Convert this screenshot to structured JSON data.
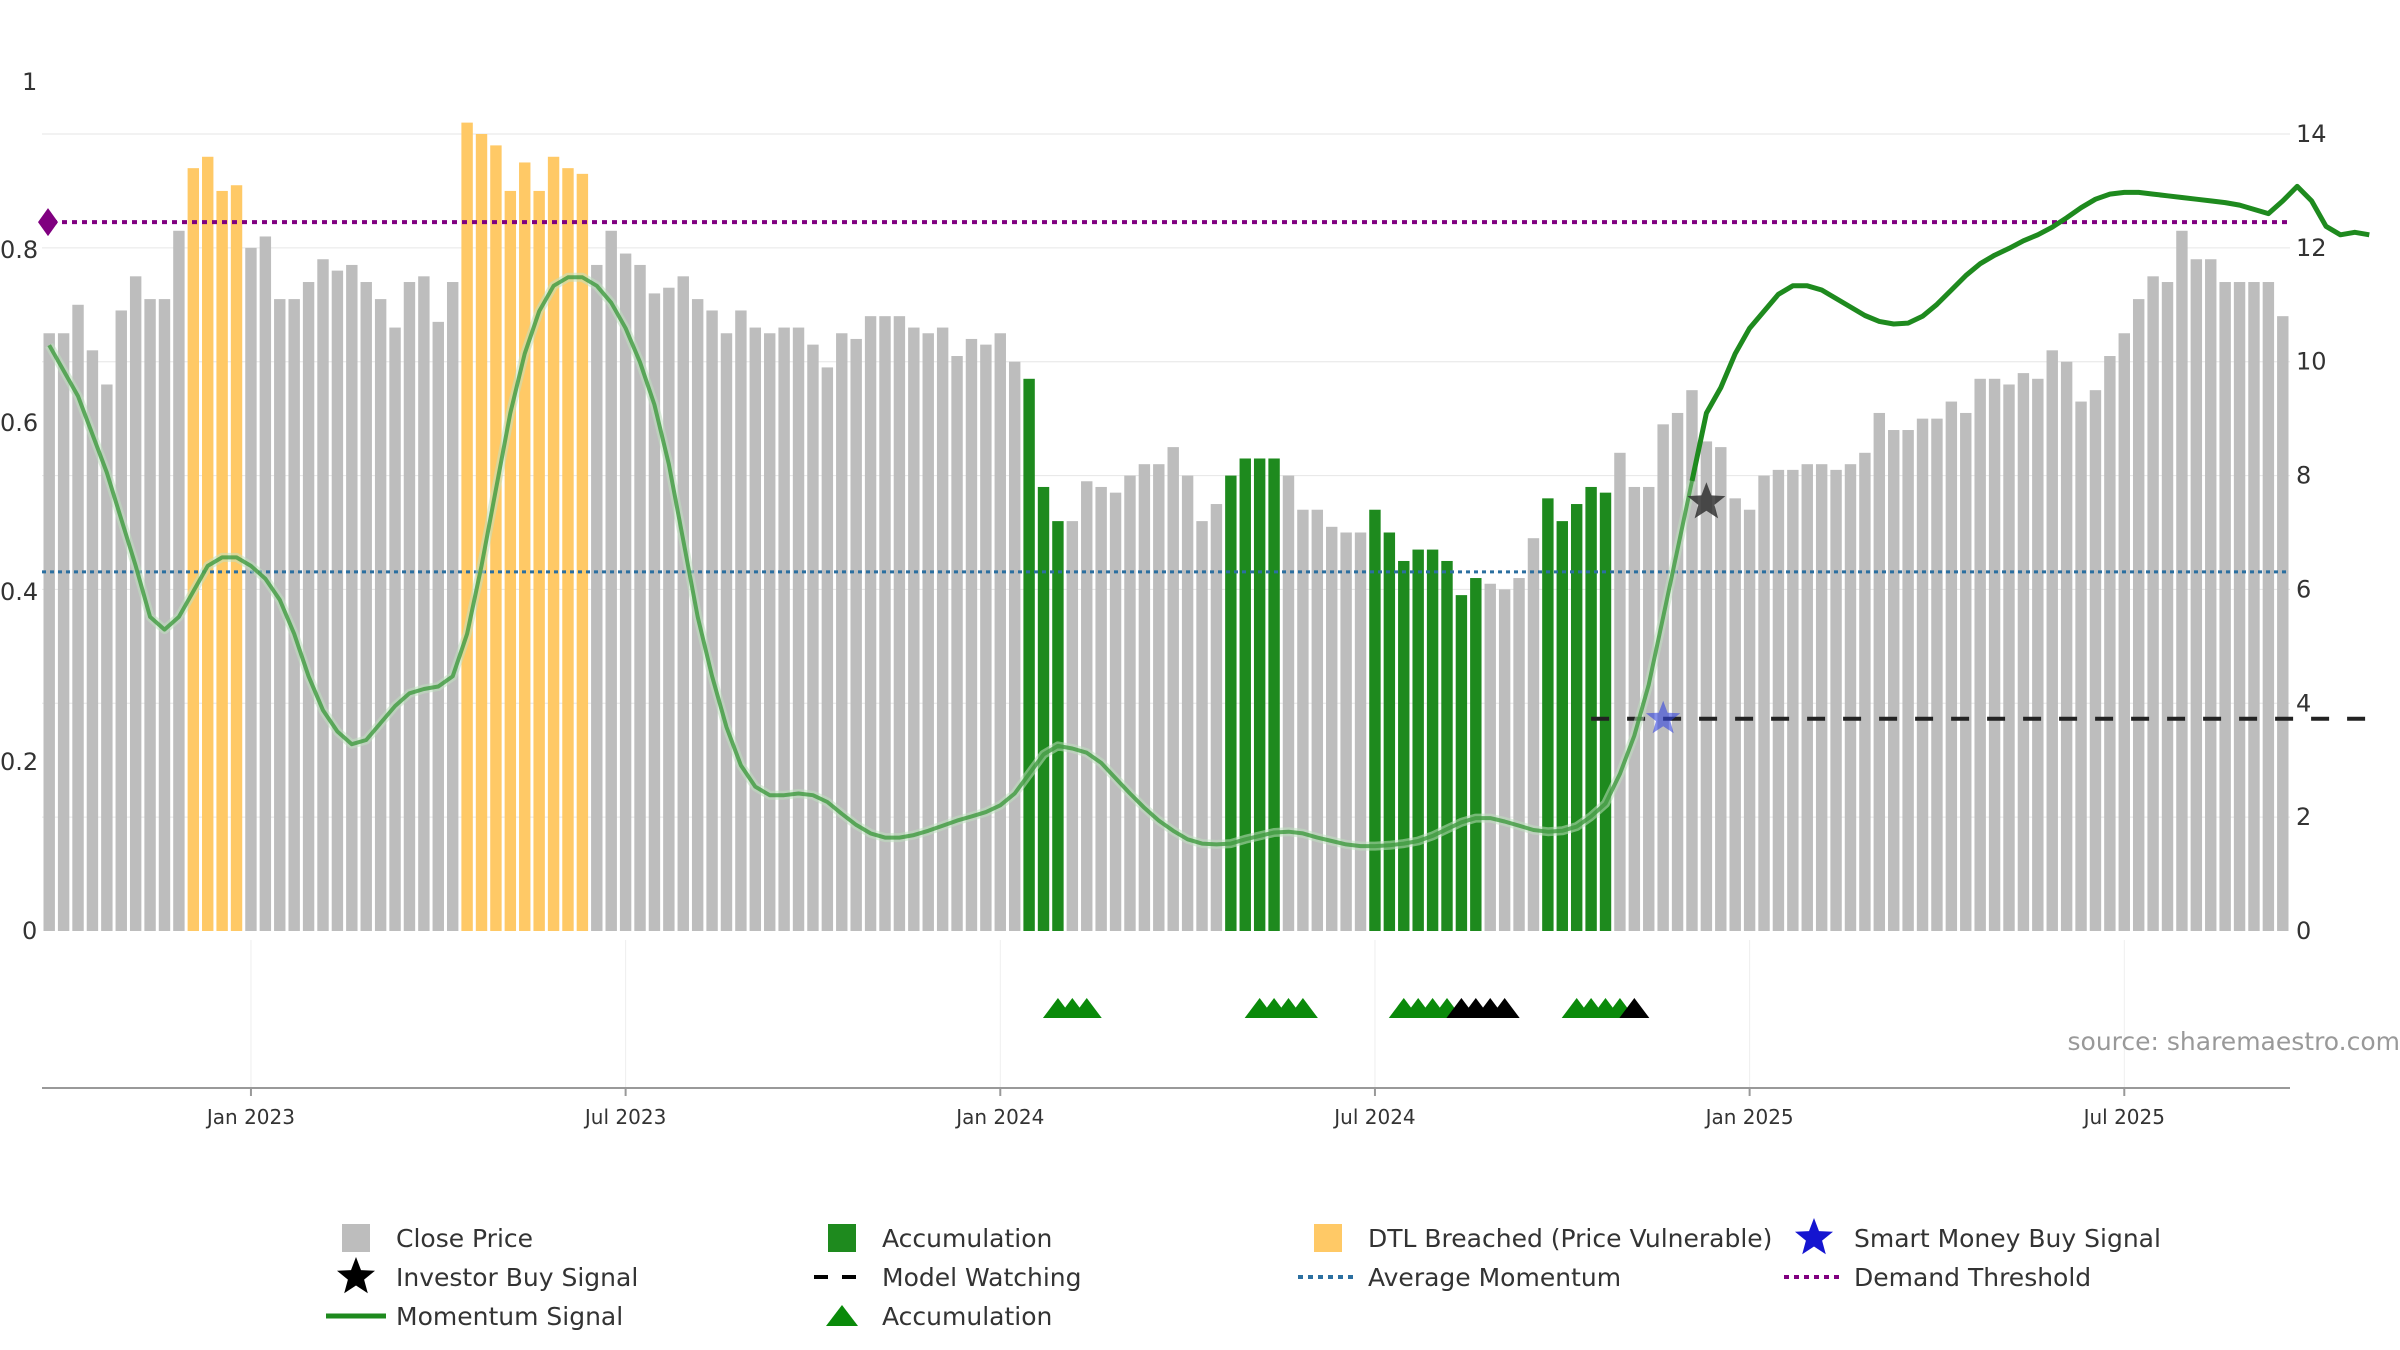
{
  "chart_data": {
    "type": "bar",
    "source_label": "source: sharemaestro.com",
    "colors": {
      "close": "#bdbdbd",
      "accumulation": "#1e8a1e",
      "dtl": "#ffc966",
      "momentum": "#1e8a1e",
      "demand_threshold": "#800080",
      "average_momentum": "#2b6fa0",
      "model_watching": "#222222",
      "investor_star": "#333333",
      "smart_star": "#3344dd",
      "triangle_green": "#0a8a0a",
      "triangle_black": "#000000"
    },
    "left_axis": {
      "ticks": [
        "0",
        "0.2",
        "0.4",
        "0.6",
        "0.8",
        "1"
      ],
      "range": [
        0,
        1
      ]
    },
    "right_axis": {
      "ticks": [
        "0",
        "2",
        "4",
        "6",
        "8",
        "10",
        "12",
        "14"
      ],
      "range": [
        0,
        14
      ]
    },
    "x_ticks": [
      "Jan 2023",
      "Jul 2023",
      "Jan 2024",
      "Jul 2024",
      "Jan 2025",
      "Jul 2025"
    ],
    "x_tick_bar_index": [
      14,
      40,
      66,
      92,
      118,
      144
    ],
    "bars": [
      {
        "v": 10.5,
        "c": "close"
      },
      {
        "v": 10.5,
        "c": "close"
      },
      {
        "v": 11.0,
        "c": "close"
      },
      {
        "v": 10.2,
        "c": "close"
      },
      {
        "v": 9.6,
        "c": "close"
      },
      {
        "v": 10.9,
        "c": "close"
      },
      {
        "v": 11.5,
        "c": "close"
      },
      {
        "v": 11.1,
        "c": "close"
      },
      {
        "v": 11.1,
        "c": "close"
      },
      {
        "v": 12.3,
        "c": "close"
      },
      {
        "v": 13.4,
        "c": "dtl"
      },
      {
        "v": 13.6,
        "c": "dtl"
      },
      {
        "v": 13.0,
        "c": "dtl"
      },
      {
        "v": 13.1,
        "c": "dtl"
      },
      {
        "v": 12.0,
        "c": "close"
      },
      {
        "v": 12.2,
        "c": "close"
      },
      {
        "v": 11.1,
        "c": "close"
      },
      {
        "v": 11.1,
        "c": "close"
      },
      {
        "v": 11.4,
        "c": "close"
      },
      {
        "v": 11.8,
        "c": "close"
      },
      {
        "v": 11.6,
        "c": "close"
      },
      {
        "v": 11.7,
        "c": "close"
      },
      {
        "v": 11.4,
        "c": "close"
      },
      {
        "v": 11.1,
        "c": "close"
      },
      {
        "v": 10.6,
        "c": "close"
      },
      {
        "v": 11.4,
        "c": "close"
      },
      {
        "v": 11.5,
        "c": "close"
      },
      {
        "v": 10.7,
        "c": "close"
      },
      {
        "v": 11.4,
        "c": "close"
      },
      {
        "v": 14.2,
        "c": "dtl"
      },
      {
        "v": 14.0,
        "c": "dtl"
      },
      {
        "v": 13.8,
        "c": "dtl"
      },
      {
        "v": 13.0,
        "c": "dtl"
      },
      {
        "v": 13.5,
        "c": "dtl"
      },
      {
        "v": 13.0,
        "c": "dtl"
      },
      {
        "v": 13.6,
        "c": "dtl"
      },
      {
        "v": 13.4,
        "c": "dtl"
      },
      {
        "v": 13.3,
        "c": "dtl"
      },
      {
        "v": 11.7,
        "c": "close"
      },
      {
        "v": 12.3,
        "c": "close"
      },
      {
        "v": 11.9,
        "c": "close"
      },
      {
        "v": 11.7,
        "c": "close"
      },
      {
        "v": 11.2,
        "c": "close"
      },
      {
        "v": 11.3,
        "c": "close"
      },
      {
        "v": 11.5,
        "c": "close"
      },
      {
        "v": 11.1,
        "c": "close"
      },
      {
        "v": 10.9,
        "c": "close"
      },
      {
        "v": 10.5,
        "c": "close"
      },
      {
        "v": 10.9,
        "c": "close"
      },
      {
        "v": 10.6,
        "c": "close"
      },
      {
        "v": 10.5,
        "c": "close"
      },
      {
        "v": 10.6,
        "c": "close"
      },
      {
        "v": 10.6,
        "c": "close"
      },
      {
        "v": 10.3,
        "c": "close"
      },
      {
        "v": 9.9,
        "c": "close"
      },
      {
        "v": 10.5,
        "c": "close"
      },
      {
        "v": 10.4,
        "c": "close"
      },
      {
        "v": 10.8,
        "c": "close"
      },
      {
        "v": 10.8,
        "c": "close"
      },
      {
        "v": 10.8,
        "c": "close"
      },
      {
        "v": 10.6,
        "c": "close"
      },
      {
        "v": 10.5,
        "c": "close"
      },
      {
        "v": 10.6,
        "c": "close"
      },
      {
        "v": 10.1,
        "c": "close"
      },
      {
        "v": 10.4,
        "c": "close"
      },
      {
        "v": 10.3,
        "c": "close"
      },
      {
        "v": 10.5,
        "c": "close"
      },
      {
        "v": 10.0,
        "c": "close"
      },
      {
        "v": 9.7,
        "c": "accumulation"
      },
      {
        "v": 7.8,
        "c": "accumulation"
      },
      {
        "v": 7.2,
        "c": "accumulation"
      },
      {
        "v": 7.2,
        "c": "close"
      },
      {
        "v": 7.9,
        "c": "close"
      },
      {
        "v": 7.8,
        "c": "close"
      },
      {
        "v": 7.7,
        "c": "close"
      },
      {
        "v": 8.0,
        "c": "close"
      },
      {
        "v": 8.2,
        "c": "close"
      },
      {
        "v": 8.2,
        "c": "close"
      },
      {
        "v": 8.5,
        "c": "close"
      },
      {
        "v": 8.0,
        "c": "close"
      },
      {
        "v": 7.2,
        "c": "close"
      },
      {
        "v": 7.5,
        "c": "close"
      },
      {
        "v": 8.0,
        "c": "accumulation"
      },
      {
        "v": 8.3,
        "c": "accumulation"
      },
      {
        "v": 8.3,
        "c": "accumulation"
      },
      {
        "v": 8.3,
        "c": "accumulation"
      },
      {
        "v": 8.0,
        "c": "close"
      },
      {
        "v": 7.4,
        "c": "close"
      },
      {
        "v": 7.4,
        "c": "close"
      },
      {
        "v": 7.1,
        "c": "close"
      },
      {
        "v": 7.0,
        "c": "close"
      },
      {
        "v": 7.0,
        "c": "close"
      },
      {
        "v": 7.4,
        "c": "accumulation"
      },
      {
        "v": 7.0,
        "c": "accumulation"
      },
      {
        "v": 6.5,
        "c": "accumulation"
      },
      {
        "v": 6.7,
        "c": "accumulation"
      },
      {
        "v": 6.7,
        "c": "accumulation"
      },
      {
        "v": 6.5,
        "c": "accumulation"
      },
      {
        "v": 5.9,
        "c": "accumulation"
      },
      {
        "v": 6.2,
        "c": "accumulation"
      },
      {
        "v": 6.1,
        "c": "close"
      },
      {
        "v": 6.0,
        "c": "close"
      },
      {
        "v": 6.2,
        "c": "close"
      },
      {
        "v": 6.9,
        "c": "close"
      },
      {
        "v": 7.6,
        "c": "accumulation"
      },
      {
        "v": 7.2,
        "c": "accumulation"
      },
      {
        "v": 7.5,
        "c": "accumulation"
      },
      {
        "v": 7.8,
        "c": "accumulation"
      },
      {
        "v": 7.7,
        "c": "accumulation"
      },
      {
        "v": 8.4,
        "c": "close"
      },
      {
        "v": 7.8,
        "c": "close"
      },
      {
        "v": 7.8,
        "c": "close"
      },
      {
        "v": 8.9,
        "c": "close"
      },
      {
        "v": 9.1,
        "c": "close"
      },
      {
        "v": 9.5,
        "c": "close"
      },
      {
        "v": 8.6,
        "c": "close"
      },
      {
        "v": 8.5,
        "c": "close"
      },
      {
        "v": 7.6,
        "c": "close"
      },
      {
        "v": 7.4,
        "c": "close"
      },
      {
        "v": 8.0,
        "c": "close"
      },
      {
        "v": 8.1,
        "c": "close"
      },
      {
        "v": 8.1,
        "c": "close"
      },
      {
        "v": 8.2,
        "c": "close"
      },
      {
        "v": 8.2,
        "c": "close"
      },
      {
        "v": 8.1,
        "c": "close"
      },
      {
        "v": 8.2,
        "c": "close"
      },
      {
        "v": 8.4,
        "c": "close"
      },
      {
        "v": 9.1,
        "c": "close"
      },
      {
        "v": 8.8,
        "c": "close"
      },
      {
        "v": 8.8,
        "c": "close"
      },
      {
        "v": 9.0,
        "c": "close"
      },
      {
        "v": 9.0,
        "c": "close"
      },
      {
        "v": 9.3,
        "c": "close"
      },
      {
        "v": 9.1,
        "c": "close"
      },
      {
        "v": 9.7,
        "c": "close"
      },
      {
        "v": 9.7,
        "c": "close"
      },
      {
        "v": 9.6,
        "c": "close"
      },
      {
        "v": 9.8,
        "c": "close"
      },
      {
        "v": 9.7,
        "c": "close"
      },
      {
        "v": 10.2,
        "c": "close"
      },
      {
        "v": 10.0,
        "c": "close"
      },
      {
        "v": 9.3,
        "c": "close"
      },
      {
        "v": 9.5,
        "c": "close"
      },
      {
        "v": 10.1,
        "c": "close"
      },
      {
        "v": 10.5,
        "c": "close"
      },
      {
        "v": 11.1,
        "c": "close"
      },
      {
        "v": 11.5,
        "c": "close"
      },
      {
        "v": 11.4,
        "c": "close"
      },
      {
        "v": 12.3,
        "c": "close"
      },
      {
        "v": 11.8,
        "c": "close"
      },
      {
        "v": 11.8,
        "c": "close"
      },
      {
        "v": 11.4,
        "c": "close"
      },
      {
        "v": 11.4,
        "c": "close"
      },
      {
        "v": 11.4,
        "c": "close"
      },
      {
        "v": 11.4,
        "c": "close"
      },
      {
        "v": 10.8,
        "c": "close"
      }
    ],
    "momentum": [
      [
        0,
        0.69
      ],
      [
        2,
        0.63
      ],
      [
        4,
        0.54
      ],
      [
        6,
        0.43
      ],
      [
        7,
        0.37
      ],
      [
        8,
        0.355
      ],
      [
        9,
        0.37
      ],
      [
        10,
        0.4
      ],
      [
        11,
        0.43
      ],
      [
        12,
        0.44
      ],
      [
        13,
        0.44
      ],
      [
        14,
        0.43
      ],
      [
        15,
        0.415
      ],
      [
        16,
        0.39
      ],
      [
        17,
        0.35
      ],
      [
        18,
        0.3
      ],
      [
        19,
        0.26
      ],
      [
        20,
        0.235
      ],
      [
        21,
        0.22
      ],
      [
        22,
        0.225
      ],
      [
        23,
        0.245
      ],
      [
        24,
        0.265
      ],
      [
        25,
        0.28
      ],
      [
        26,
        0.285
      ],
      [
        27,
        0.288
      ],
      [
        28,
        0.3
      ],
      [
        29,
        0.35
      ],
      [
        30,
        0.43
      ],
      [
        31,
        0.52
      ],
      [
        32,
        0.61
      ],
      [
        33,
        0.68
      ],
      [
        34,
        0.73
      ],
      [
        35,
        0.76
      ],
      [
        36,
        0.77
      ],
      [
        37,
        0.77
      ],
      [
        38,
        0.76
      ],
      [
        39,
        0.74
      ],
      [
        40,
        0.71
      ],
      [
        41,
        0.67
      ],
      [
        42,
        0.62
      ],
      [
        43,
        0.55
      ],
      [
        44,
        0.46
      ],
      [
        45,
        0.37
      ],
      [
        46,
        0.3
      ],
      [
        47,
        0.24
      ],
      [
        48,
        0.195
      ],
      [
        49,
        0.17
      ],
      [
        50,
        0.16
      ],
      [
        51,
        0.16
      ],
      [
        52,
        0.162
      ],
      [
        53,
        0.16
      ],
      [
        54,
        0.152
      ],
      [
        55,
        0.138
      ],
      [
        56,
        0.125
      ],
      [
        57,
        0.115
      ],
      [
        58,
        0.11
      ],
      [
        59,
        0.11
      ],
      [
        60,
        0.113
      ],
      [
        61,
        0.118
      ],
      [
        62,
        0.124
      ],
      [
        63,
        0.13
      ],
      [
        64,
        0.135
      ],
      [
        65,
        0.14
      ],
      [
        66,
        0.148
      ],
      [
        67,
        0.162
      ],
      [
        68,
        0.185
      ],
      [
        69,
        0.208
      ],
      [
        70,
        0.218
      ],
      [
        71,
        0.215
      ],
      [
        72,
        0.21
      ],
      [
        73,
        0.198
      ],
      [
        74,
        0.18
      ],
      [
        75,
        0.162
      ],
      [
        76,
        0.145
      ],
      [
        77,
        0.13
      ],
      [
        78,
        0.118
      ],
      [
        79,
        0.108
      ],
      [
        80,
        0.103
      ],
      [
        81,
        0.102
      ],
      [
        82,
        0.103
      ],
      [
        83,
        0.108
      ],
      [
        84,
        0.112
      ],
      [
        85,
        0.116
      ],
      [
        86,
        0.117
      ],
      [
        87,
        0.115
      ],
      [
        88,
        0.11
      ],
      [
        89,
        0.106
      ],
      [
        90,
        0.102
      ],
      [
        91,
        0.1
      ],
      [
        92,
        0.1
      ],
      [
        93,
        0.101
      ],
      [
        94,
        0.103
      ],
      [
        95,
        0.106
      ],
      [
        96,
        0.112
      ],
      [
        97,
        0.12
      ],
      [
        98,
        0.128
      ],
      [
        99,
        0.133
      ],
      [
        100,
        0.133
      ],
      [
        101,
        0.129
      ],
      [
        102,
        0.124
      ],
      [
        103,
        0.119
      ],
      [
        104,
        0.117
      ],
      [
        105,
        0.118
      ],
      [
        106,
        0.123
      ],
      [
        107,
        0.135
      ],
      [
        108,
        0.15
      ],
      [
        109,
        0.185
      ],
      [
        110,
        0.23
      ],
      [
        111,
        0.29
      ],
      [
        112,
        0.37
      ],
      [
        113,
        0.45
      ],
      [
        114,
        0.53
      ],
      [
        115,
        0.61
      ],
      [
        116,
        0.64
      ],
      [
        117,
        0.68
      ],
      [
        118,
        0.71
      ],
      [
        119,
        0.73
      ],
      [
        120,
        0.75
      ],
      [
        121,
        0.76
      ],
      [
        122,
        0.76
      ],
      [
        123,
        0.755
      ],
      [
        124,
        0.745
      ],
      [
        125,
        0.735
      ],
      [
        126,
        0.725
      ],
      [
        127,
        0.718
      ],
      [
        128,
        0.715
      ],
      [
        129,
        0.716
      ],
      [
        130,
        0.724
      ],
      [
        131,
        0.738
      ],
      [
        132,
        0.755
      ],
      [
        133,
        0.772
      ],
      [
        134,
        0.786
      ],
      [
        135,
        0.796
      ],
      [
        136,
        0.804
      ],
      [
        137,
        0.813
      ],
      [
        138,
        0.82
      ],
      [
        139,
        0.829
      ],
      [
        140,
        0.84
      ],
      [
        141,
        0.852
      ],
      [
        142,
        0.862
      ],
      [
        143,
        0.868
      ],
      [
        144,
        0.87
      ],
      [
        145,
        0.87
      ],
      [
        146,
        0.868
      ],
      [
        147,
        0.866
      ],
      [
        148,
        0.864
      ],
      [
        149,
        0.862
      ],
      [
        150,
        0.86
      ],
      [
        151,
        0.858
      ],
      [
        152,
        0.855
      ],
      [
        153,
        0.85
      ],
      [
        154,
        0.845
      ],
      [
        155,
        0.86
      ],
      [
        156,
        0.877
      ],
      [
        157,
        0.86
      ],
      [
        158,
        0.83
      ],
      [
        159,
        0.82
      ],
      [
        160,
        0.823
      ],
      [
        161,
        0.82
      ]
    ],
    "momentum_dim_until": 114,
    "demand_threshold": 0.835,
    "average_momentum": 0.423,
    "model_watching": {
      "value": 0.25,
      "from": 107,
      "to": 161
    },
    "investor_buy_signal": {
      "x": 115,
      "y": 0.505
    },
    "smart_money_buy_signal": {
      "x": 112,
      "y": 0.25
    },
    "triangles": [
      {
        "x": 70,
        "c": "triangle_green"
      },
      {
        "x": 71,
        "c": "triangle_green"
      },
      {
        "x": 72,
        "c": "triangle_green"
      },
      {
        "x": 84,
        "c": "triangle_green"
      },
      {
        "x": 85,
        "c": "triangle_green"
      },
      {
        "x": 86,
        "c": "triangle_green"
      },
      {
        "x": 87,
        "c": "triangle_green"
      },
      {
        "x": 94,
        "c": "triangle_green"
      },
      {
        "x": 95,
        "c": "triangle_green"
      },
      {
        "x": 96,
        "c": "triangle_green"
      },
      {
        "x": 97,
        "c": "triangle_green"
      },
      {
        "x": 98,
        "c": "triangle_black"
      },
      {
        "x": 99,
        "c": "triangle_black"
      },
      {
        "x": 100,
        "c": "triangle_black"
      },
      {
        "x": 101,
        "c": "triangle_black"
      },
      {
        "x": 106,
        "c": "triangle_green"
      },
      {
        "x": 107,
        "c": "triangle_green"
      },
      {
        "x": 108,
        "c": "triangle_green"
      },
      {
        "x": 109,
        "c": "triangle_green"
      },
      {
        "x": 110,
        "c": "triangle_black"
      }
    ],
    "legend": [
      {
        "label": "Close Price",
        "marker": "square",
        "color": "close"
      },
      {
        "label": "Accumulation",
        "marker": "square",
        "color": "accumulation"
      },
      {
        "label": "DTL Breached (Price Vulnerable)",
        "marker": "square",
        "color": "dtl"
      },
      {
        "label": "Smart Money Buy Signal",
        "marker": "star",
        "color": "#1515d0"
      },
      {
        "label": "Investor Buy Signal",
        "marker": "star",
        "color": "#000000"
      },
      {
        "label": "Model Watching",
        "marker": "dash",
        "color": "#000000"
      },
      {
        "label": "Average Momentum",
        "marker": "dot",
        "color": "average_momentum"
      },
      {
        "label": "Demand Threshold",
        "marker": "dot",
        "color": "demand_threshold"
      },
      {
        "label": "Momentum Signal",
        "marker": "line",
        "color": "momentum"
      },
      {
        "label": "Accumulation",
        "marker": "triangle",
        "color": "triangle_green"
      }
    ]
  }
}
